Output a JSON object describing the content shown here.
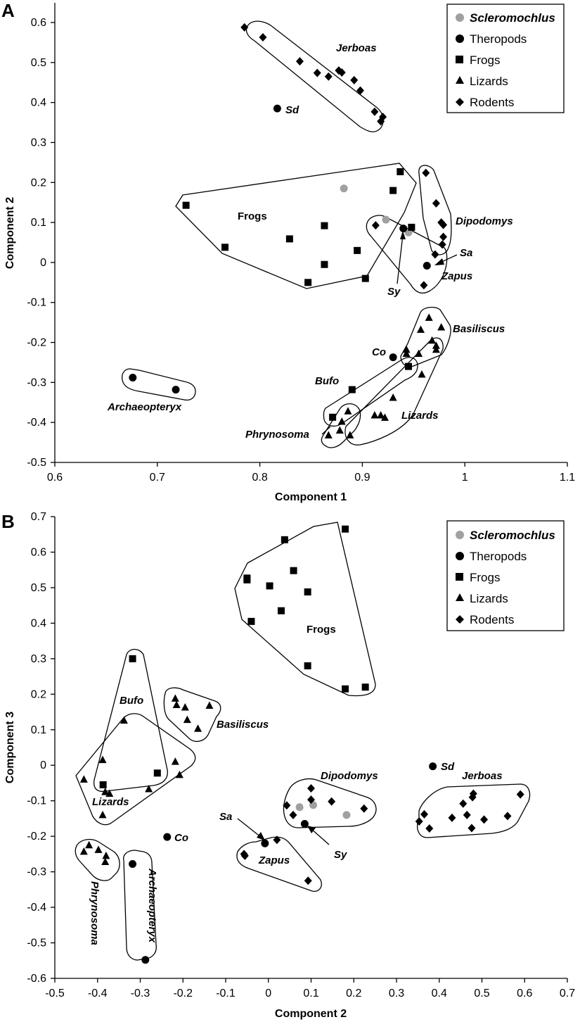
{
  "chart_data": [
    {
      "panel": "A",
      "type": "scatter",
      "xlabel": "Component 1",
      "ylabel": "Component 2",
      "xlim": [
        0.6,
        1.1
      ],
      "ylim": [
        -0.5,
        0.6
      ],
      "xticks": [
        "0.6",
        "0.7",
        "0.8",
        "0.9",
        "1",
        "1.1"
      ],
      "yticks": [
        "-0.5",
        "-0.4",
        "-0.3",
        "-0.2",
        "-0.1",
        "0",
        "0.1",
        "0.2",
        "0.3",
        "0.4",
        "0.5",
        "0.6"
      ],
      "legend_position": "top-right",
      "legend": [
        "Scleromochlus",
        "Theropods",
        "Frogs",
        "Lizards",
        "Rodents"
      ],
      "series": [
        {
          "name": "Scleromochlus",
          "marker": "circle",
          "color": "#a0a0a0",
          "points": [
            [
              0.882,
              0.185
            ],
            [
              0.923,
              0.107
            ],
            [
              0.945,
              0.075
            ]
          ]
        },
        {
          "name": "Theropods",
          "marker": "circle",
          "color": "#000000",
          "points": [
            [
              0.817,
              0.385
            ],
            [
              0.94,
              0.085
            ],
            [
              0.963,
              -0.008
            ],
            [
              0.93,
              -0.237
            ],
            [
              0.676,
              -0.288
            ],
            [
              0.718,
              -0.318
            ]
          ]
        },
        {
          "name": "Frogs",
          "marker": "square",
          "color": "#000000",
          "points": [
            [
              0.728,
              0.143
            ],
            [
              0.766,
              0.038
            ],
            [
              0.829,
              0.059
            ],
            [
              0.847,
              -0.05
            ],
            [
              0.863,
              0.092
            ],
            [
              0.863,
              -0.005
            ],
            [
              0.895,
              0.03
            ],
            [
              0.903,
              -0.04
            ],
            [
              0.93,
              0.18
            ],
            [
              0.937,
              0.227
            ],
            [
              0.948,
              0.088
            ],
            [
              0.945,
              -0.26
            ],
            [
              0.89,
              -0.318
            ],
            [
              0.871,
              -0.387
            ]
          ]
        },
        {
          "name": "Lizards",
          "marker": "triangle",
          "color": "#000000",
          "points": [
            [
              0.965,
              -0.138
            ],
            [
              0.977,
              -0.162
            ],
            [
              0.957,
              -0.168
            ],
            [
              0.972,
              -0.208
            ],
            [
              0.972,
              -0.218
            ],
            [
              0.968,
              -0.195
            ],
            [
              0.943,
              -0.218
            ],
            [
              0.943,
              -0.228
            ],
            [
              0.955,
              -0.228
            ],
            [
              0.958,
              -0.28
            ],
            [
              0.93,
              -0.338
            ],
            [
              0.912,
              -0.382
            ],
            [
              0.918,
              -0.382
            ],
            [
              0.922,
              -0.388
            ],
            [
              0.886,
              -0.372
            ],
            [
              0.88,
              -0.398
            ],
            [
              0.878,
              -0.42
            ],
            [
              0.867,
              -0.432
            ],
            [
              0.888,
              -0.432
            ]
          ]
        },
        {
          "name": "Rodents",
          "marker": "diamond",
          "color": "#000000",
          "points": [
            [
              0.785,
              0.588
            ],
            [
              0.803,
              0.563
            ],
            [
              0.839,
              0.503
            ],
            [
              0.856,
              0.474
            ],
            [
              0.867,
              0.465
            ],
            [
              0.877,
              0.48
            ],
            [
              0.88,
              0.475
            ],
            [
              0.892,
              0.456
            ],
            [
              0.898,
              0.43
            ],
            [
              0.912,
              0.377
            ],
            [
              0.92,
              0.364
            ],
            [
              0.918,
              0.353
            ],
            [
              0.913,
              0.093
            ],
            [
              0.962,
              0.224
            ],
            [
              0.972,
              0.148
            ],
            [
              0.977,
              0.1
            ],
            [
              0.979,
              0.094
            ],
            [
              0.979,
              0.064
            ],
            [
              0.978,
              0.045
            ],
            [
              0.971,
              0.02
            ],
            [
              0.96,
              -0.057
            ]
          ]
        }
      ],
      "annotations": [
        "Jerboas",
        "Sd",
        "Frogs",
        "Dipodomys",
        "Sa",
        "Zapus",
        "Sy",
        "Basiliscus",
        "Co",
        "Bufo",
        "Archaeopteryx",
        "Phrynosoma",
        "Lizards"
      ]
    },
    {
      "panel": "B",
      "type": "scatter",
      "xlabel": "Component 2",
      "ylabel": "Component 3",
      "xlim": [
        -0.5,
        0.7
      ],
      "ylim": [
        -0.6,
        0.7
      ],
      "xticks": [
        "-0.5",
        "-0.4",
        "-0.3",
        "-0.2",
        "-0.1",
        "0",
        "0.1",
        "0.2",
        "0.3",
        "0.4",
        "0.5",
        "0.6",
        "0.7"
      ],
      "yticks": [
        "-0.6",
        "-0.5",
        "-0.4",
        "-0.3",
        "-0.2",
        "-0.1",
        "0",
        "0.1",
        "0.2",
        "0.3",
        "0.4",
        "0.5",
        "0.6",
        "0.7"
      ],
      "legend_position": "top-right",
      "legend": [
        "Scleromochlus",
        "Theropods",
        "Frogs",
        "Lizards",
        "Rodents"
      ],
      "series": [
        {
          "name": "Scleromochlus",
          "marker": "circle",
          "color": "#a0a0a0",
          "points": [
            [
              0.073,
              -0.118
            ],
            [
              0.105,
              -0.112
            ],
            [
              0.183,
              -0.14
            ]
          ]
        },
        {
          "name": "Theropods",
          "marker": "circle",
          "color": "#000000",
          "points": [
            [
              0.385,
              -0.003
            ],
            [
              0.085,
              -0.165
            ],
            [
              -0.008,
              -0.22
            ],
            [
              -0.237,
              -0.202
            ],
            [
              -0.318,
              -0.278
            ],
            [
              -0.288,
              -0.548
            ]
          ]
        },
        {
          "name": "Frogs",
          "marker": "square",
          "color": "#000000",
          "points": [
            [
              0.18,
              0.665
            ],
            [
              0.038,
              0.635
            ],
            [
              0.059,
              0.548
            ],
            [
              -0.05,
              0.527
            ],
            [
              -0.05,
              0.522
            ],
            [
              0.003,
              0.505
            ],
            [
              0.092,
              0.488
            ],
            [
              0.03,
              0.435
            ],
            [
              -0.04,
              0.405
            ],
            [
              0.092,
              0.28
            ],
            [
              0.18,
              0.215
            ],
            [
              0.227,
              0.22
            ],
            [
              -0.318,
              0.3
            ],
            [
              -0.26,
              -0.022
            ],
            [
              -0.387,
              -0.055
            ]
          ]
        },
        {
          "name": "Lizards",
          "marker": "triangle",
          "color": "#000000",
          "points": [
            [
              -0.218,
              0.188
            ],
            [
              -0.215,
              0.17
            ],
            [
              -0.195,
              0.163
            ],
            [
              -0.138,
              0.168
            ],
            [
              -0.19,
              0.128
            ],
            [
              -0.165,
              0.103
            ],
            [
              -0.338,
              0.126
            ],
            [
              -0.388,
              0.015
            ],
            [
              -0.432,
              -0.04
            ],
            [
              -0.382,
              -0.075
            ],
            [
              -0.372,
              -0.08
            ],
            [
              -0.388,
              -0.14
            ],
            [
              -0.28,
              -0.067
            ],
            [
              -0.218,
              0.01
            ],
            [
              -0.208,
              -0.027
            ],
            [
              -0.42,
              -0.225
            ],
            [
              -0.432,
              -0.243
            ],
            [
              -0.398,
              -0.238
            ],
            [
              -0.38,
              -0.255
            ],
            [
              -0.382,
              -0.272
            ]
          ]
        },
        {
          "name": "Rodents",
          "marker": "diamond",
          "color": "#000000",
          "points": [
            [
              0.043,
              -0.113
            ],
            [
              0.058,
              -0.14
            ],
            [
              0.1,
              -0.065
            ],
            [
              0.1,
              -0.097
            ],
            [
              0.148,
              -0.102
            ],
            [
              0.224,
              -0.122
            ],
            [
              0.02,
              -0.21
            ],
            [
              -0.057,
              -0.25
            ],
            [
              -0.055,
              -0.255
            ],
            [
              0.093,
              -0.325
            ],
            [
              0.59,
              -0.082
            ],
            [
              0.48,
              -0.08
            ],
            [
              0.478,
              -0.09
            ],
            [
              0.456,
              -0.108
            ],
            [
              0.365,
              -0.138
            ],
            [
              0.43,
              -0.148
            ],
            [
              0.465,
              -0.14
            ],
            [
              0.505,
              -0.153
            ],
            [
              0.56,
              -0.143
            ],
            [
              0.353,
              -0.158
            ],
            [
              0.377,
              -0.178
            ],
            [
              0.476,
              -0.177
            ]
          ]
        }
      ],
      "annotations": [
        "Frogs",
        "Bufo",
        "Basiliscus",
        "Lizards",
        "Dipodomys",
        "Sd",
        "Jerboas",
        "Sa",
        "Sy",
        "Co",
        "Zapus",
        "Phrynosoma",
        "Archaeopteryx"
      ]
    }
  ]
}
